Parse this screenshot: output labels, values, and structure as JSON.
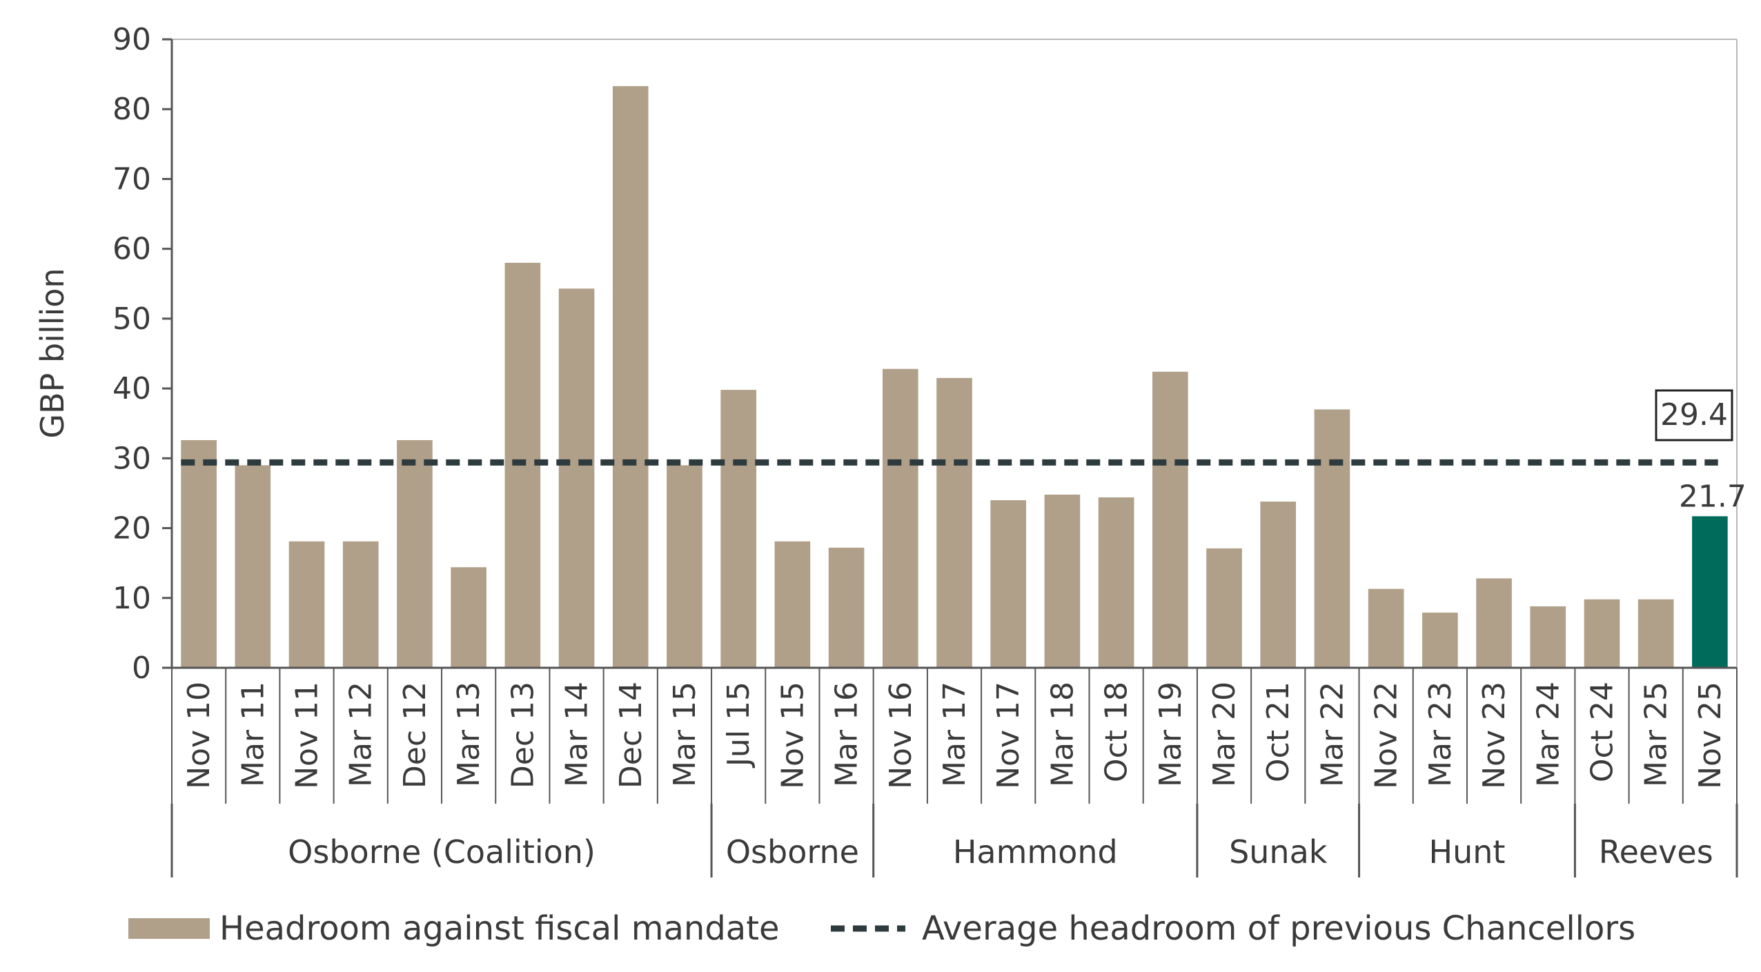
{
  "chart_data": {
    "type": "bar",
    "ylabel": "GBP billion",
    "xlabel": "",
    "ylim": [
      0,
      90
    ],
    "yticks": [
      0,
      10,
      20,
      30,
      40,
      50,
      60,
      70,
      80,
      90
    ],
    "grid": false,
    "legend_position": "bottom",
    "categories": [
      "Nov 10",
      "Mar 11",
      "Nov 11",
      "Mar 12",
      "Dec 12",
      "Mar 13",
      "Dec 13",
      "Mar 14",
      "Dec 14",
      "Mar 15",
      "Jul 15",
      "Nov 15",
      "Mar 16",
      "Nov 16",
      "Mar 17",
      "Nov 17",
      "Mar 18",
      "Oct 18",
      "Mar 19",
      "Mar 20",
      "Oct 21",
      "Mar 22",
      "Nov 22",
      "Mar 23",
      "Nov 23",
      "Mar 24",
      "Oct 24",
      "Mar 25",
      "Nov 25"
    ],
    "series": [
      {
        "name": "Headroom against fiscal mandate",
        "values": [
          32.6,
          29.0,
          18.1,
          18.1,
          32.6,
          14.4,
          58.0,
          54.3,
          83.3,
          29.0,
          39.8,
          18.1,
          17.2,
          42.8,
          41.5,
          24.0,
          24.8,
          24.4,
          42.4,
          17.1,
          23.8,
          37.0,
          11.3,
          7.9,
          12.8,
          8.8,
          9.8,
          9.8,
          21.7
        ],
        "color": "#b09f89",
        "highlight_color": "#006b5b"
      },
      {
        "name": "Average headroom of previous Chancellors",
        "value": 29.4,
        "color": "#2e3b3e",
        "style": "dashed"
      }
    ],
    "groups": [
      {
        "label": "Osborne (Coalition)",
        "start": 0,
        "end": 9
      },
      {
        "label": "Osborne",
        "start": 10,
        "end": 12
      },
      {
        "label": "Hammond",
        "start": 13,
        "end": 18
      },
      {
        "label": "Sunak",
        "start": 19,
        "end": 21
      },
      {
        "label": "Hunt",
        "start": 22,
        "end": 25
      },
      {
        "label": "Reeves",
        "start": 26,
        "end": 28
      }
    ],
    "annotations": {
      "average_label": "29.4",
      "last_value_label": "21.7"
    }
  }
}
